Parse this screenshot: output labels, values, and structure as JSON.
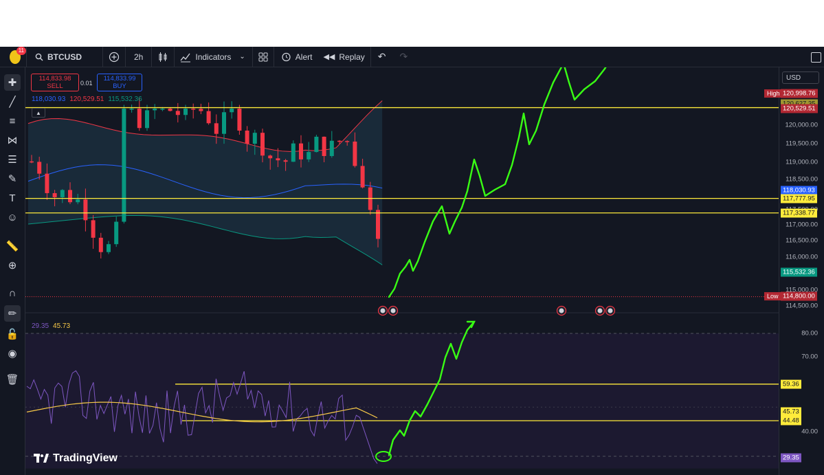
{
  "toolbar": {
    "notification_count": "11",
    "symbol": "BTCUSD",
    "interval": "2h",
    "indicators_label": "Indicators",
    "alert_label": "Alert",
    "replay_label": "Replay"
  },
  "trade": {
    "sell_price": "114,833.98",
    "sell_label": "SELL",
    "spread": "0.01",
    "buy_price": "114,833.99",
    "buy_label": "BUY"
  },
  "bollinger": {
    "basis": "118,030.93",
    "upper": "120,529.51",
    "lower": "115,532.36"
  },
  "rsi": {
    "value": "29.35",
    "ma": "45.73"
  },
  "axis": {
    "currency": "USD",
    "price_ticks": [
      "120,000.00",
      "119,500.00",
      "119,000.00",
      "118,500.00",
      "117,500.00",
      "117,000.00",
      "116,500.00",
      "116,000.00",
      "115,000.00",
      "114,500.00"
    ],
    "rsi_ticks": [
      "80.00",
      "70.00",
      "40.00"
    ],
    "high_label": "High",
    "high_value": "120,998.76",
    "low_label": "Low",
    "low_value": "114,800.00",
    "hidden_tag": "120,627.35",
    "tag_upper": "120,529.51",
    "tag_basis": "118,030.93",
    "tag_line1": "117,777.95",
    "tag_line2": "117,338.77",
    "tag_lower": "115,532.36",
    "rsi_tag_top": "59.36",
    "rsi_tag_ma": "45.73",
    "rsi_tag_mid": "44.48",
    "rsi_tag_value": "29.35"
  },
  "brand": "TradingView",
  "colors": {
    "background": "#131722",
    "up": "#089981",
    "down": "#f23645",
    "hline": "#ffeb3b",
    "drawing": "#39ff14",
    "rsi": "#7e57c2"
  },
  "chart_data": {
    "type": "candlestick",
    "symbol": "BTCUSD",
    "interval": "2h",
    "price_range": [
      114500,
      121000
    ],
    "horizontal_lines": [
      120529.51,
      117777.95,
      117338.77
    ],
    "rsi_levels": [
      59.36,
      44.48
    ],
    "rsi_range": [
      25,
      85
    ],
    "rsi_last": 29.35,
    "rsi_ma_last": 45.73,
    "high": 120998.76,
    "low": 114800.0
  }
}
